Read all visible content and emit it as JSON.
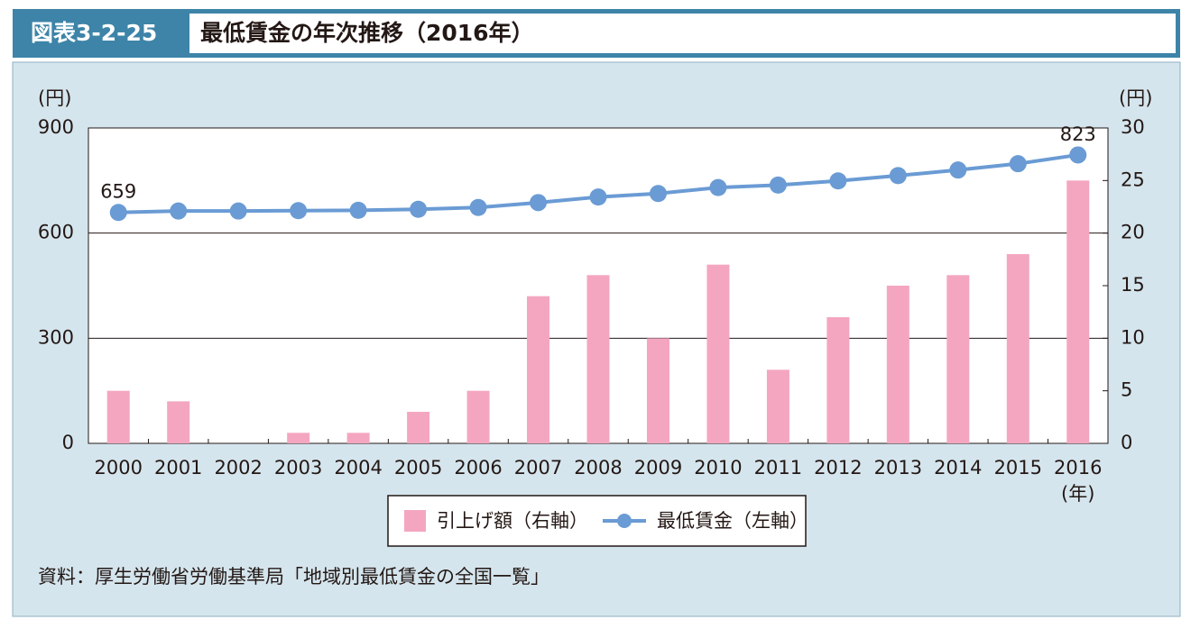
{
  "header": {
    "figure_number": "図表3-2-25",
    "title": "最低賃金の年次推移（2016年）"
  },
  "chart_data": {
    "type": "bar",
    "categories": [
      "2000",
      "2001",
      "2002",
      "2003",
      "2004",
      "2005",
      "2006",
      "2007",
      "2008",
      "2009",
      "2010",
      "2011",
      "2012",
      "2013",
      "2014",
      "2015",
      "2016"
    ],
    "series": [
      {
        "name": "引上げ額（右軸）",
        "type": "bar",
        "axis": "y2",
        "color": "#f4a6c1",
        "values": [
          5,
          4,
          0,
          1,
          1,
          3,
          5,
          14,
          16,
          10,
          17,
          7,
          12,
          15,
          16,
          18,
          25
        ]
      },
      {
        "name": "最低賃金（左軸）",
        "type": "line",
        "color": "#6a9bd4",
        "values": [
          659,
          663,
          663,
          664,
          665,
          668,
          673,
          687,
          703,
          713,
          730,
          737,
          749,
          764,
          780,
          798,
          823
        ],
        "value_labels": [
          "659",
          null,
          null,
          null,
          null,
          null,
          null,
          null,
          null,
          null,
          null,
          null,
          null,
          null,
          null,
          null,
          "823"
        ]
      }
    ],
    "ylabel": "(円)",
    "y2label": "(円)",
    "xlabel": "(年)",
    "ylim": [
      0,
      900
    ],
    "yticks": [
      0,
      300,
      600,
      900
    ],
    "y2lim": [
      0,
      30
    ],
    "y2ticks": [
      0,
      5,
      10,
      15,
      20,
      25,
      30
    ],
    "grid": true
  },
  "source": "資料：厚生労働省労働基準局「地域別最低賃金の全国一覧」"
}
